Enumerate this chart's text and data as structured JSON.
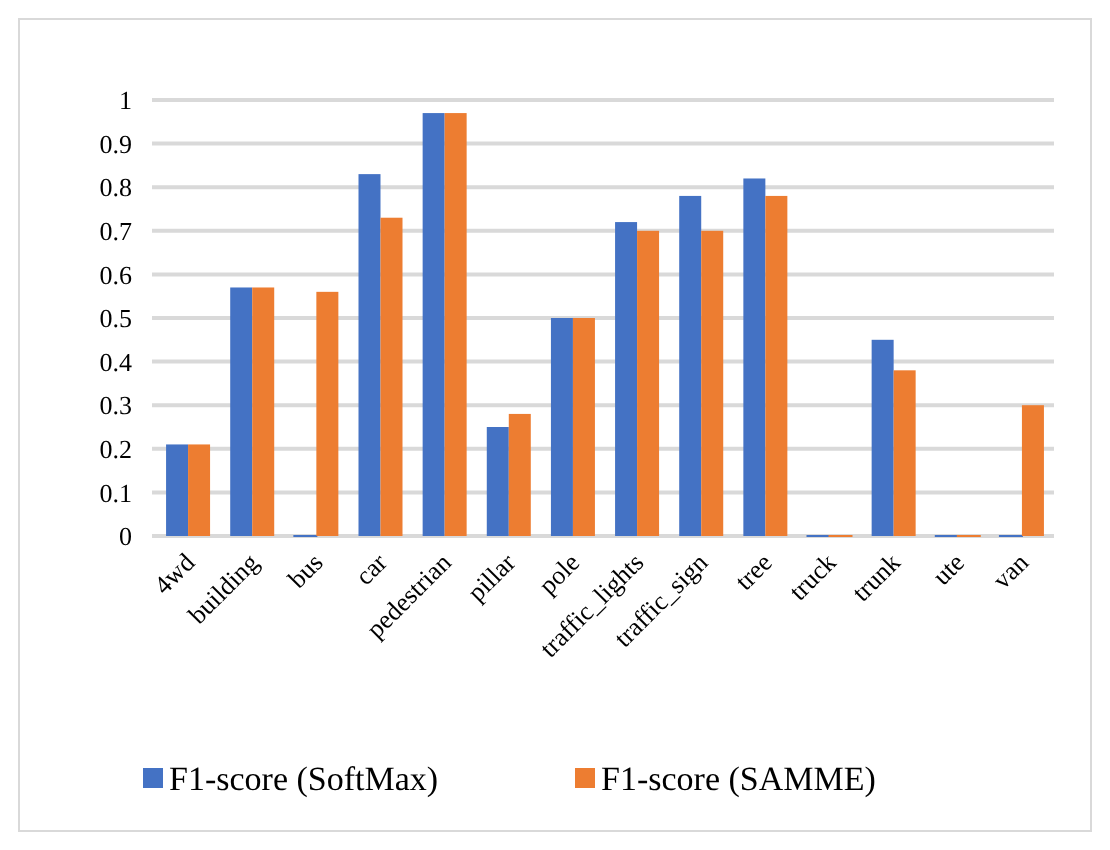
{
  "chart_data": {
    "type": "bar",
    "categories": [
      "4wd",
      "building",
      "bus",
      "car",
      "pedestrian",
      "pillar",
      "pole",
      "traffic_lights",
      "traffic_sign",
      "tree",
      "truck",
      "trunk",
      "ute",
      "van"
    ],
    "series": [
      {
        "name": "F1-score (SoftMax)",
        "color": "#4472c4",
        "values": [
          0.21,
          0.57,
          0,
          0.83,
          0.97,
          0.25,
          0.5,
          0.72,
          0.78,
          0.82,
          0,
          0.45,
          0,
          0
        ]
      },
      {
        "name": "F1-score (SAMME)",
        "color": "#ed7d31",
        "values": [
          0.21,
          0.57,
          0.56,
          0.73,
          0.97,
          0.28,
          0.5,
          0.7,
          0.7,
          0.78,
          0,
          0.38,
          0,
          0.3
        ]
      }
    ],
    "ylim": [
      0,
      1
    ],
    "yticks": [
      0,
      0.1,
      0.2,
      0.3,
      0.4,
      0.5,
      0.6,
      0.7,
      0.8,
      0.9,
      1
    ],
    "grid": "y",
    "legend": "bottom"
  }
}
